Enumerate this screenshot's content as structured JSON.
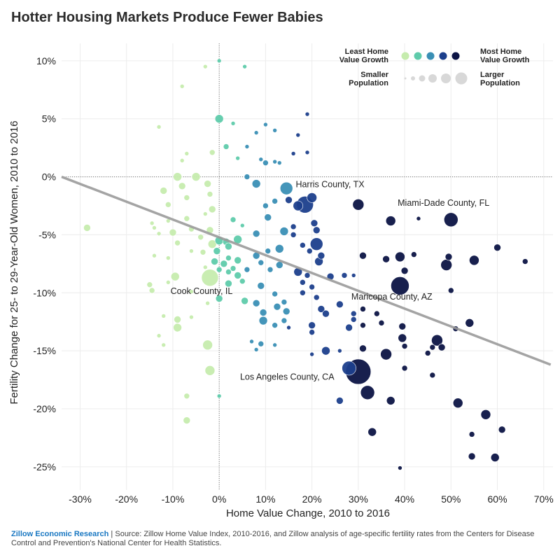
{
  "chart_data": {
    "type": "scatter",
    "title": "Hotter Housing Markets Produce Fewer Babies",
    "xlabel": "Home Value Change, 2010 to 2016",
    "ylabel": "Fertility Change for 25- to 29-Year-Old Women, 2010 to 2016",
    "xlim": [
      -34,
      72
    ],
    "ylim": [
      -27,
      11.5
    ],
    "xticks": [
      -30,
      -20,
      -10,
      0,
      10,
      20,
      30,
      40,
      50,
      60,
      70
    ],
    "xtick_labels": [
      "-30%",
      "-20%",
      "-10%",
      "0%",
      "10%",
      "20%",
      "30%",
      "40%",
      "50%",
      "60%",
      "70%"
    ],
    "yticks": [
      10,
      5,
      0,
      -5,
      -10,
      -15,
      -20,
      -25
    ],
    "ytick_labels": [
      "10%",
      "5%",
      "0%",
      "-5%",
      "-10%",
      "-15%",
      "-20%",
      "-25%"
    ],
    "trendline": {
      "x": [
        -34,
        71.5
      ],
      "y": [
        0.0,
        -16.2
      ]
    },
    "colors": [
      "#c6ecae",
      "#5fcbab",
      "#3a8fb5",
      "#1c3f8c",
      "#0c1445"
    ],
    "annotations": [
      {
        "text": "Harris County, TX",
        "x": 16.5,
        "y": -0.9
      },
      {
        "text": "Miami-Dade County, FL",
        "x": 38.5,
        "y": -2.5
      },
      {
        "text": "Cook County, IL",
        "x": -10.5,
        "y": -10.1
      },
      {
        "text": "Maricopa County, AZ",
        "x": 28.5,
        "y": -10.6
      },
      {
        "text": "Los Angeles County, CA",
        "x": 4.5,
        "y": -17.5
      }
    ],
    "legend": {
      "least_label_1": "Least Home",
      "least_label_2": "Value Growth",
      "most_label_1": "Most Home",
      "most_label_2": "Value Growth",
      "smaller_label_1": "Smaller",
      "smaller_label_2": "Population",
      "larger_label_1": "Larger",
      "larger_label_2": "Population"
    },
    "points": [
      [
        0,
        10,
        3
      ],
      [
        -3,
        9.5,
        3
      ],
      [
        5.5,
        9.5,
        3
      ],
      [
        -8,
        7.8,
        3
      ],
      [
        -13,
        4.3,
        3
      ],
      [
        0,
        5,
        6
      ],
      [
        3,
        4.6,
        3
      ],
      [
        19,
        5.4,
        3
      ],
      [
        10,
        4.5,
        3
      ],
      [
        8,
        3.8,
        3
      ],
      [
        12,
        4,
        3
      ],
      [
        17,
        3.6,
        3
      ],
      [
        1.5,
        2.6,
        4
      ],
      [
        -1.5,
        2.1,
        4
      ],
      [
        -7,
        2,
        3
      ],
      [
        -8,
        1.4,
        3
      ],
      [
        4,
        1.6,
        3
      ],
      [
        6,
        2.6,
        3
      ],
      [
        9,
        1.5,
        3
      ],
      [
        12,
        1.3,
        3
      ],
      [
        13,
        1.2,
        3
      ],
      [
        16,
        2,
        3
      ],
      [
        19,
        2.1,
        3
      ],
      [
        -9,
        0,
        6
      ],
      [
        -5,
        0,
        6
      ],
      [
        -2.5,
        -0.6,
        5
      ],
      [
        -8,
        -0.8,
        5
      ],
      [
        -12,
        -1.2,
        5
      ],
      [
        -2,
        -1.5,
        4
      ],
      [
        -7,
        -1.8,
        4
      ],
      [
        -11,
        -2.4,
        4
      ],
      [
        -1.5,
        -2.8,
        5
      ],
      [
        -3,
        -3.2,
        3
      ],
      [
        -7,
        -3.6,
        4
      ],
      [
        -11,
        -3.8,
        3
      ],
      [
        -14.5,
        -4,
        3
      ],
      [
        -28.5,
        -4.4,
        5
      ],
      [
        -14,
        -4.4,
        3
      ],
      [
        -10,
        -4.8,
        5
      ],
      [
        -13,
        -4.9,
        3
      ],
      [
        -6,
        -4.5,
        4
      ],
      [
        -2,
        -4.6,
        5
      ],
      [
        -4,
        -5.2,
        4
      ],
      [
        -9,
        -5.7,
        4
      ],
      [
        -1.5,
        -5.8,
        6
      ],
      [
        0,
        -5.5,
        6
      ],
      [
        1.5,
        -5.6,
        5
      ],
      [
        4,
        -5.4,
        6
      ],
      [
        2,
        -6,
        5
      ],
      [
        -3.5,
        -6.5,
        4
      ],
      [
        -0.5,
        -6.4,
        5
      ],
      [
        -6,
        -6.4,
        3
      ],
      [
        -11,
        -7,
        3
      ],
      [
        -14,
        -6.8,
        3
      ],
      [
        -1,
        -7.3,
        5
      ],
      [
        1,
        -7.5,
        5
      ],
      [
        2,
        -7,
        4
      ],
      [
        4,
        -7.2,
        5
      ],
      [
        -3,
        -7.8,
        3
      ],
      [
        0,
        -8,
        4
      ],
      [
        3,
        -7.9,
        4
      ],
      [
        -9.5,
        -8.6,
        6
      ],
      [
        -2,
        -8.7,
        12
      ],
      [
        2,
        -8.2,
        4
      ],
      [
        4,
        -8.5,
        5
      ],
      [
        -11,
        -9.1,
        3
      ],
      [
        2,
        -9.2,
        5
      ],
      [
        -15,
        -9.3,
        4
      ],
      [
        -14.5,
        -9.8,
        4
      ],
      [
        -6,
        -9.9,
        3
      ],
      [
        0,
        -10.5,
        5
      ],
      [
        -2.5,
        -10.9,
        3
      ],
      [
        5.5,
        -10.7,
        5
      ],
      [
        -12,
        -12,
        3
      ],
      [
        -6,
        -12.1,
        3
      ],
      [
        -9,
        -12.3,
        5
      ],
      [
        -9,
        -13,
        6
      ],
      [
        -13,
        -13.7,
        3
      ],
      [
        -12,
        -14.5,
        3
      ],
      [
        -2.5,
        -14.5,
        7
      ],
      [
        -2,
        -16.7,
        7
      ],
      [
        -7,
        -18.9,
        4
      ],
      [
        -7,
        -21,
        5
      ],
      [
        0,
        -18.9,
        3
      ],
      [
        8,
        -0.6,
        6
      ],
      [
        6,
        0,
        4
      ],
      [
        10,
        1.2,
        4
      ],
      [
        14.5,
        -1,
        9
      ],
      [
        12,
        -2.1,
        4
      ],
      [
        15,
        -2,
        5
      ],
      [
        10,
        -2.5,
        4
      ],
      [
        10.5,
        -3.5,
        5
      ],
      [
        14,
        -4.7,
        6
      ],
      [
        5,
        -4.2,
        3
      ],
      [
        8,
        -4.9,
        5
      ],
      [
        3,
        -3.7,
        4
      ],
      [
        10.5,
        -6.4,
        4
      ],
      [
        8,
        -6.8,
        5
      ],
      [
        13,
        -6.2,
        6
      ],
      [
        9,
        -7.4,
        4
      ],
      [
        13,
        -7.6,
        5
      ],
      [
        11,
        -8,
        4
      ],
      [
        6,
        -8,
        4
      ],
      [
        5,
        -9,
        4
      ],
      [
        9,
        -9.4,
        5
      ],
      [
        12,
        -10.1,
        4
      ],
      [
        14,
        -10.8,
        4
      ],
      [
        8,
        -10.9,
        5
      ],
      [
        9.5,
        -11.7,
        5
      ],
      [
        12.5,
        -11.2,
        5
      ],
      [
        14.5,
        -11.6,
        5
      ],
      [
        9.5,
        -12.4,
        6
      ],
      [
        12,
        -12.8,
        4
      ],
      [
        14,
        -12.4,
        4
      ],
      [
        15,
        -13,
        3
      ],
      [
        7,
        -14.2,
        3
      ],
      [
        12,
        -14.5,
        3
      ],
      [
        9,
        -14.4,
        4
      ],
      [
        8,
        -14.9,
        3
      ],
      [
        17,
        -2.5,
        7
      ],
      [
        20,
        -1.8,
        7
      ],
      [
        18.5,
        -2.4,
        12
      ],
      [
        30,
        -2.4,
        8
      ],
      [
        20.5,
        -4,
        5
      ],
      [
        16,
        -4.3,
        4
      ],
      [
        16,
        -5,
        4
      ],
      [
        21,
        -4.6,
        5
      ],
      [
        21,
        -5.8,
        9
      ],
      [
        18,
        -5.9,
        4
      ],
      [
        19.5,
        -6.4,
        4
      ],
      [
        22,
        -6.8,
        5
      ],
      [
        21.5,
        -7.3,
        6
      ],
      [
        17,
        -8.2,
        6
      ],
      [
        19,
        -8.5,
        4
      ],
      [
        27,
        -8.5,
        4
      ],
      [
        29,
        -8.5,
        3
      ],
      [
        24,
        -8.6,
        5
      ],
      [
        18,
        -9.1,
        4
      ],
      [
        20,
        -9.5,
        4
      ],
      [
        18,
        -10,
        4
      ],
      [
        21,
        -10.4,
        4
      ],
      [
        26,
        -11,
        5
      ],
      [
        22,
        -11.4,
        5
      ],
      [
        23,
        -11.8,
        5
      ],
      [
        29,
        -11.8,
        4
      ],
      [
        28,
        -13,
        5
      ],
      [
        20,
        -12.8,
        5
      ],
      [
        20,
        -13.4,
        4
      ],
      [
        23,
        -15,
        6
      ],
      [
        20,
        -15.3,
        3
      ],
      [
        26,
        -15,
        3
      ],
      [
        28,
        -16.5,
        10
      ],
      [
        30,
        -16.8,
        18
      ],
      [
        26,
        -19.3,
        5
      ],
      [
        29,
        -12.3,
        4
      ],
      [
        31,
        -11.4,
        4
      ],
      [
        31,
        -12.8,
        4
      ],
      [
        34,
        -11.8,
        4
      ],
      [
        35,
        -12.6,
        4
      ],
      [
        31,
        -14.8,
        5
      ],
      [
        36,
        -15.3,
        8
      ],
      [
        32,
        -18.6,
        10
      ],
      [
        33,
        -22,
        6
      ],
      [
        37,
        -19.3,
        6
      ],
      [
        40,
        -16.5,
        4
      ],
      [
        39,
        -25.1,
        3
      ],
      [
        37,
        -3.8,
        7
      ],
      [
        43,
        -3.6,
        3
      ],
      [
        50,
        -3.7,
        10
      ],
      [
        31,
        -6.8,
        5
      ],
      [
        36,
        -7.1,
        5
      ],
      [
        39,
        -6.9,
        7
      ],
      [
        42,
        -6.7,
        4
      ],
      [
        40,
        -8.1,
        5
      ],
      [
        39,
        -9.4,
        13
      ],
      [
        49.5,
        -6.9,
        5
      ],
      [
        49,
        -7.6,
        8
      ],
      [
        55,
        -7.2,
        7
      ],
      [
        60,
        -6.1,
        5
      ],
      [
        66,
        -7.3,
        4
      ],
      [
        50,
        -9.8,
        4
      ],
      [
        51,
        -13.1,
        4
      ],
      [
        54,
        -12.6,
        6
      ],
      [
        47,
        -14.1,
        8
      ],
      [
        46,
        -14.7,
        4
      ],
      [
        48,
        -14.7,
        5
      ],
      [
        45,
        -15.2,
        4
      ],
      [
        40,
        -14.6,
        4
      ],
      [
        39.5,
        -12.9,
        5
      ],
      [
        39.5,
        -13.9,
        6
      ],
      [
        46,
        -17.1,
        4
      ],
      [
        51.5,
        -19.5,
        7
      ],
      [
        57.5,
        -20.5,
        7
      ],
      [
        61,
        -21.8,
        5
      ],
      [
        54.5,
        -22.2,
        4
      ],
      [
        54.5,
        -24.1,
        5
      ],
      [
        59.5,
        -24.2,
        6
      ]
    ]
  },
  "footer": {
    "brand": "Zillow Economic Research",
    "separator": " | ",
    "source": "Source: Zillow Home Value Index, 2010-2016, and Zillow analysis of age-specific fertility rates from the Centers for Disease Control and Prevention's National Center for Health Statistics."
  }
}
